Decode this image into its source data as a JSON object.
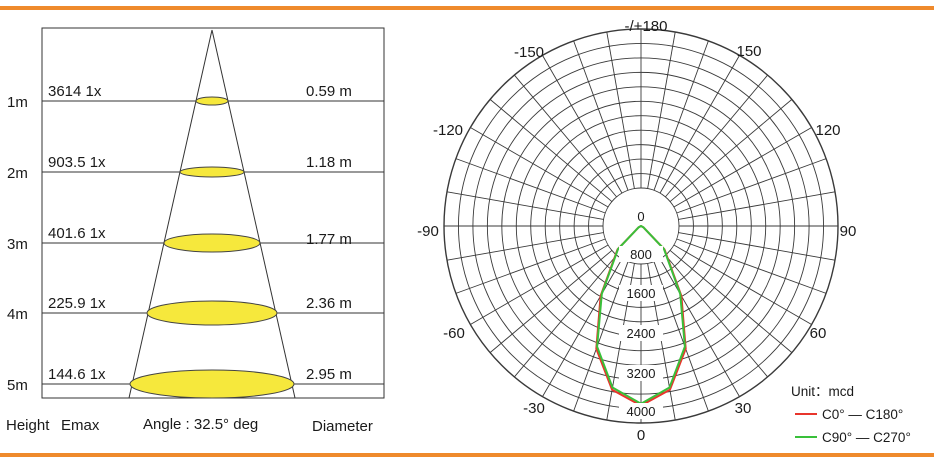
{
  "colors": {
    "accent_rule": "#ef8a2c",
    "ellipse_fill": "#f6e83c",
    "ellipse_stroke": "#444444",
    "c0_c180": "#e8352c",
    "c90_c270": "#39c03a"
  },
  "cone": {
    "angle_label": "Angle : 32.5° deg",
    "height_header": "Height",
    "emax_header": "Emax",
    "diameter_header": "Diameter",
    "rows": [
      {
        "height": "1m",
        "emax": "3614 1x",
        "diameter": "0.59 m"
      },
      {
        "height": "2m",
        "emax": "903.5 1x",
        "diameter": "1.18 m"
      },
      {
        "height": "3m",
        "emax": "401.6 1x",
        "diameter": "1.77 m"
      },
      {
        "height": "4m",
        "emax": "225.9 1x",
        "diameter": "2.36 m"
      },
      {
        "height": "5m",
        "emax": "144.6 1x",
        "diameter": "2.95 m"
      }
    ]
  },
  "polar": {
    "angle_labels": {
      "top": "-/+180",
      "neg150": "-150",
      "pos150": "150",
      "neg120": "-120",
      "pos120": "120",
      "neg90": "-90",
      "pos90": "90",
      "neg60": "-60",
      "pos60": "60",
      "neg30": "-30",
      "pos30": "30",
      "bottom": "0"
    },
    "radial_labels": [
      "0",
      "800",
      "1600",
      "2400",
      "3200",
      "4000"
    ],
    "unit_label": "Unit：mcd"
  },
  "chart_data": {
    "type": "polar",
    "subtype": "luminous intensity distribution",
    "r_range": [
      0,
      4000
    ],
    "r_ticks": [
      0,
      800,
      1600,
      2400,
      3200,
      4000
    ],
    "angle_ticks_deg": [
      -180,
      -150,
      -120,
      -90,
      -60,
      -30,
      0,
      30,
      60,
      90,
      120,
      150,
      180
    ],
    "unit": "mcd",
    "legend_position": "bottom-right",
    "series": [
      {
        "name": "C0° — C180°",
        "color": "#e8352c",
        "angles_deg": [
          -60,
          -45,
          -30,
          -20,
          -10,
          0,
          10,
          20,
          30,
          45,
          60
        ],
        "values": [
          60,
          700,
          1700,
          2750,
          3500,
          3780,
          3500,
          2750,
          1700,
          700,
          60
        ]
      },
      {
        "name": "C90° — C270°",
        "color": "#39c03a",
        "angles_deg": [
          -60,
          -45,
          -30,
          -20,
          -10,
          0,
          10,
          20,
          30,
          45,
          60
        ],
        "values": [
          60,
          680,
          1650,
          2700,
          3450,
          3740,
          3450,
          2700,
          1650,
          680,
          60
        ]
      }
    ]
  }
}
